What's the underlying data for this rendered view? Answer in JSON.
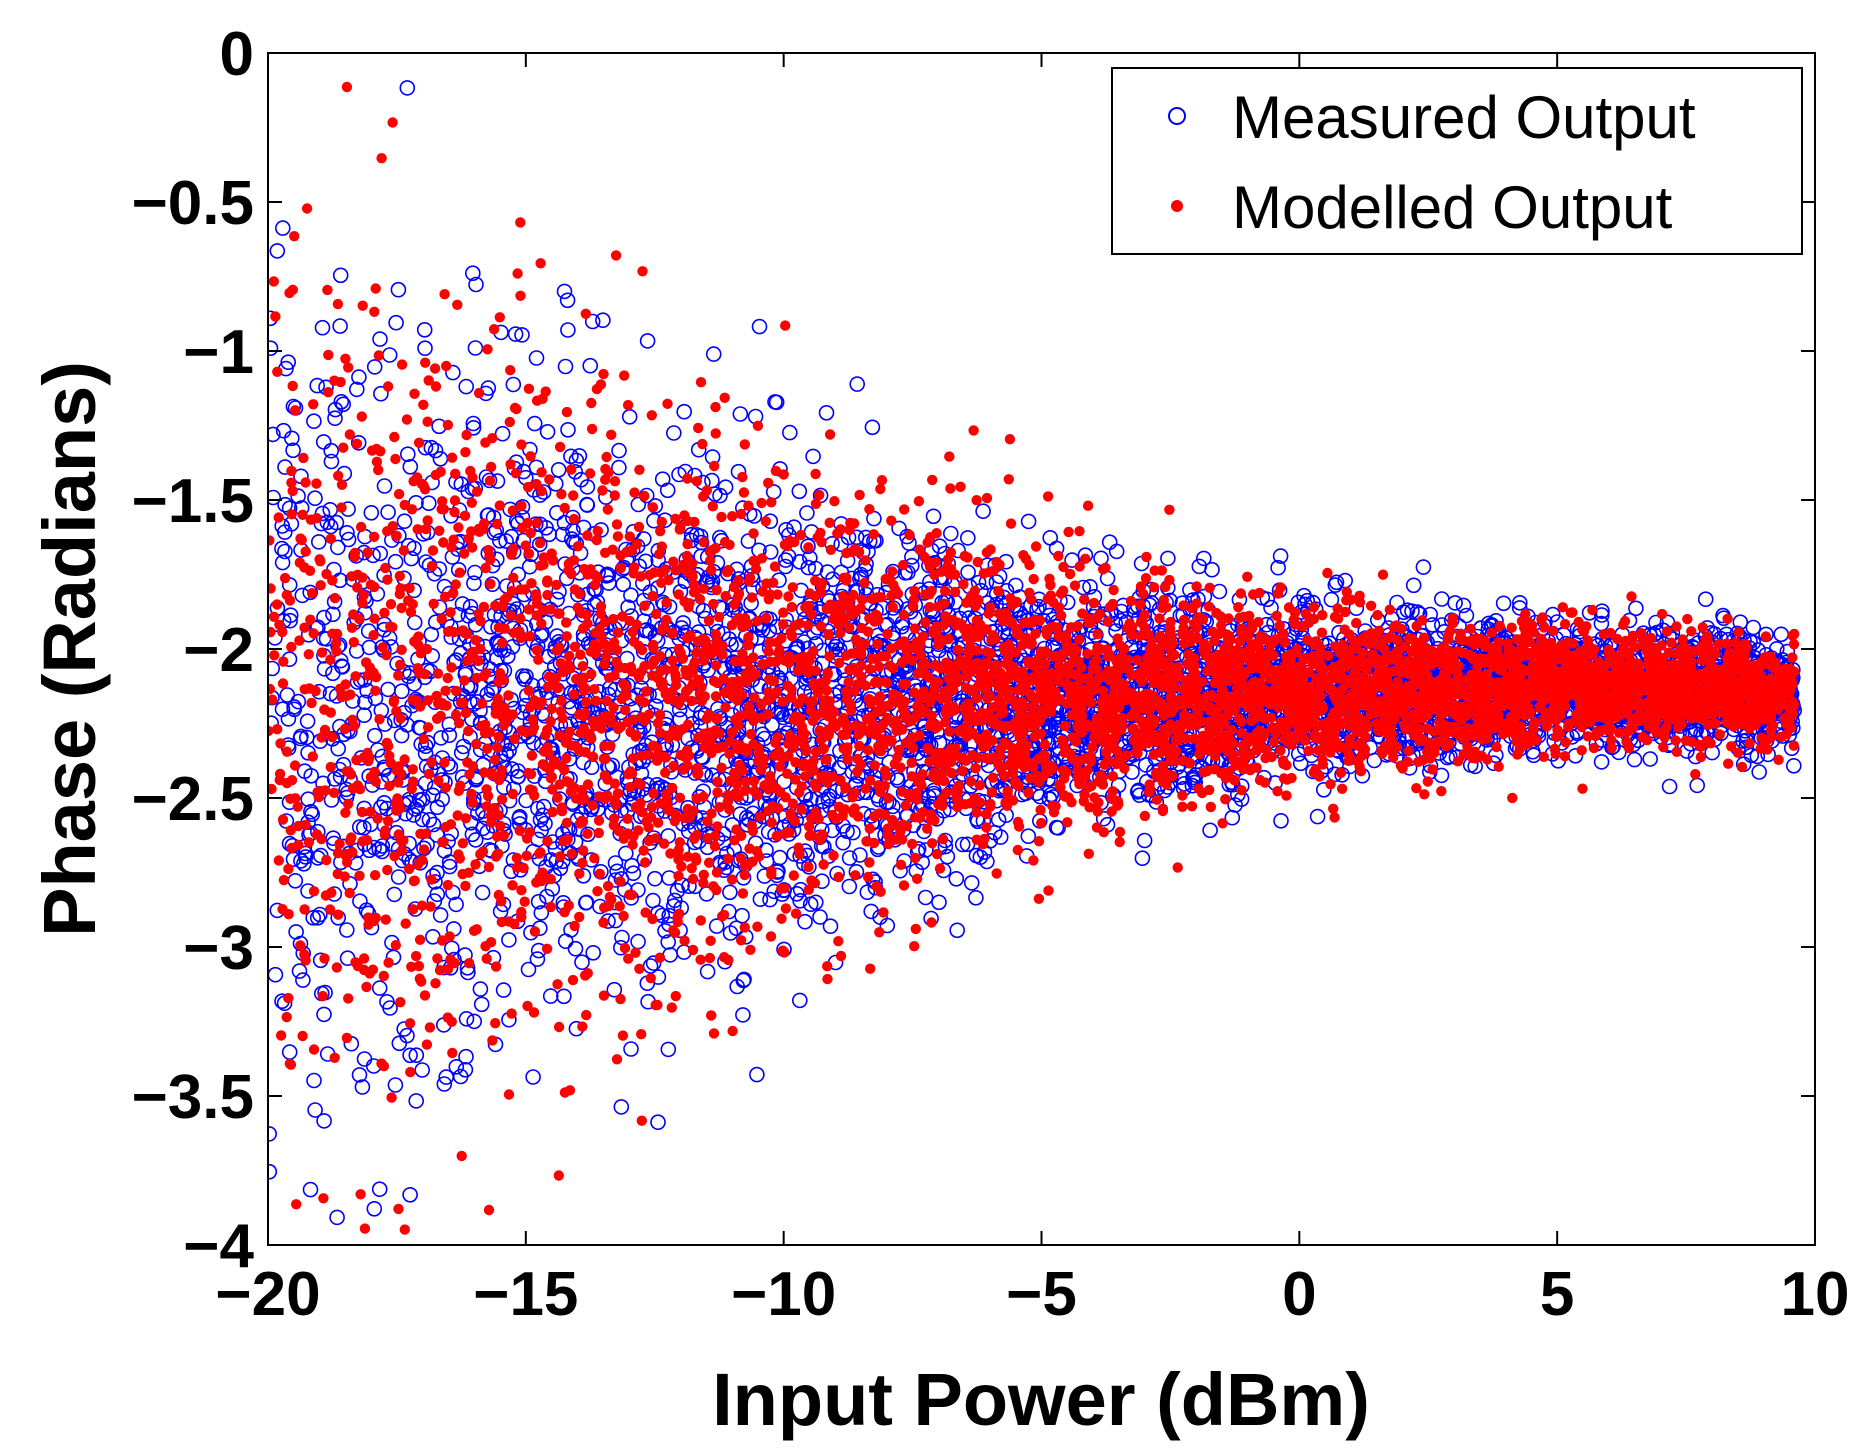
{
  "chart_data": {
    "type": "scatter",
    "title": "",
    "xlabel": "Input Power (dBm)",
    "ylabel": "Phase (Radians)",
    "xlim": [
      -20,
      10
    ],
    "ylim": [
      -4,
      0
    ],
    "xticks": [
      -20,
      -15,
      -10,
      -5,
      0,
      5,
      10
    ],
    "yticks": [
      0,
      -0.5,
      -1,
      -1.5,
      -2,
      -2.5,
      -3,
      -3.5,
      -4
    ],
    "xtick_labels": [
      "−20",
      "−15",
      "−10",
      "−5",
      "0",
      "5",
      "10"
    ],
    "ytick_labels": [
      "0",
      "−0.5",
      "−1",
      "−1.5",
      "−2",
      "−2.5",
      "−3",
      "−3.5",
      "−4"
    ],
    "legend_position": "top-right",
    "series": [
      {
        "name": "Measured Output",
        "marker": "open-circle",
        "color": "#0000ff",
        "center_phase_at_x": [
          [
            -20,
            -2.2
          ],
          [
            -10,
            -2.2
          ],
          [
            0,
            -2.15
          ],
          [
            5,
            -2.12
          ],
          [
            9.5,
            -2.15
          ]
        ],
        "spread_sd_at_x": [
          [
            -20,
            0.75
          ],
          [
            -15,
            0.55
          ],
          [
            -10,
            0.38
          ],
          [
            -5,
            0.22
          ],
          [
            0,
            0.14
          ],
          [
            5,
            0.1
          ],
          [
            10,
            0.08
          ]
        ]
      },
      {
        "name": "Modelled Output",
        "marker": "filled-dot",
        "color": "#ff0000",
        "center_phase_at_x": [
          [
            -20,
            -2.2
          ],
          [
            -10,
            -2.2
          ],
          [
            0,
            -2.15
          ],
          [
            5,
            -2.12
          ],
          [
            9.5,
            -2.15
          ]
        ],
        "spread_sd_at_x": [
          [
            -20,
            0.75
          ],
          [
            -15,
            0.55
          ],
          [
            -10,
            0.38
          ],
          [
            -5,
            0.22
          ],
          [
            0,
            0.14
          ],
          [
            5,
            0.1
          ],
          [
            10,
            0.08
          ]
        ]
      }
    ]
  }
}
